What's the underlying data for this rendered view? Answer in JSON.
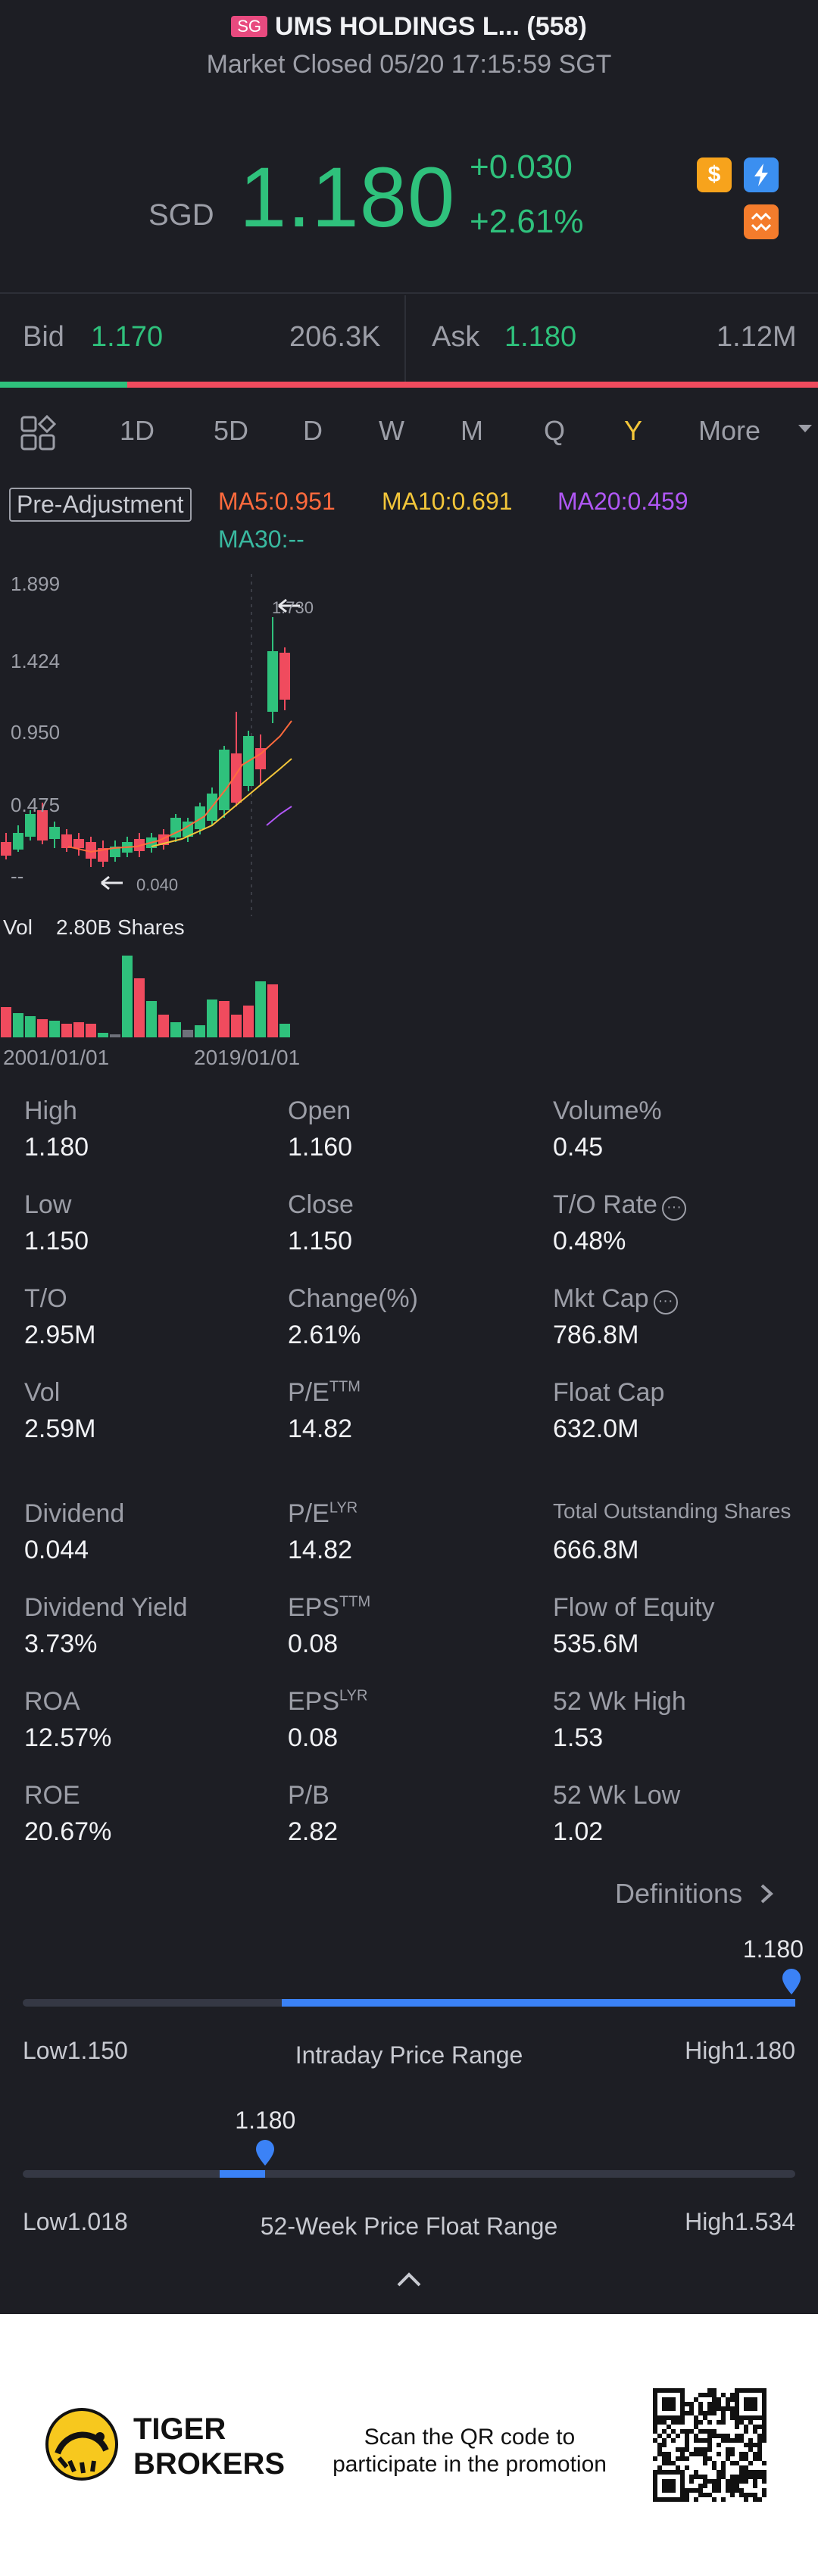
{
  "header": {
    "exchange_badge": "SG",
    "title": "UMS HOLDINGS L... (558)",
    "subtitle": "Market Closed 05/20 17:15:59 SGT"
  },
  "quote": {
    "currency": "SGD",
    "price": "1.180",
    "change": "+0.030",
    "change_pct": "+2.61%",
    "icons": [
      "dollar-icon",
      "flash-icon",
      "cross-trade-icon"
    ]
  },
  "bid_ask": {
    "bid_label": "Bid",
    "bid_price": "1.170",
    "bid_size": "206.3K",
    "ask_label": "Ask",
    "ask_price": "1.180",
    "ask_size": "1.12M",
    "bid_ratio": 0.155
  },
  "tabs": {
    "items": [
      "1D",
      "5D",
      "D",
      "W",
      "M",
      "Q",
      "Y",
      "More"
    ],
    "active": "Y"
  },
  "chart_legend": {
    "adjust": "Pre-Adjustment",
    "ma5": "MA5:0.951",
    "ma10": "MA10:0.691",
    "ma20": "MA20:0.459",
    "ma30": "MA30:--",
    "colors": {
      "ma5": "#ff6a3d",
      "ma10": "#f3c63a",
      "ma20": "#b057f5",
      "ma30": "#39b9a0"
    }
  },
  "chart_labels": {
    "y_ticks": [
      "1.899",
      "1.424",
      "0.950",
      "0.475",
      "--"
    ],
    "max_marker": "1.730",
    "min_marker": "0.040",
    "vol_label": "Vol",
    "vol_value": "2.80B Shares",
    "date_start": "2001/01/01",
    "date_mid": "2019/01/01"
  },
  "stats": [
    {
      "label": "High",
      "value": "1.180"
    },
    {
      "label": "Open",
      "value": "1.160"
    },
    {
      "label": "Volume%",
      "value": "0.45"
    },
    {
      "label": "Low",
      "value": "1.150"
    },
    {
      "label": "Close",
      "value": "1.150"
    },
    {
      "label": "T/O Rate",
      "value": "0.48%"
    },
    {
      "label": "T/O",
      "value": "2.95M"
    },
    {
      "label": "Change(%)",
      "value": "2.61%"
    },
    {
      "label": "Mkt Cap",
      "value": "786.8M"
    },
    {
      "label": "Vol",
      "value": "2.59M"
    },
    {
      "label": "P/E",
      "sup": "TTM",
      "value": "14.82"
    },
    {
      "label": "Float Cap",
      "value": "632.0M"
    },
    {
      "label": "Dividend",
      "value": "0.044"
    },
    {
      "label": "P/E",
      "sup": "LYR",
      "value": "14.82"
    },
    {
      "label": "Total Outstanding Shares",
      "value": "666.8M"
    },
    {
      "label": "Dividend Yield",
      "value": "3.73%"
    },
    {
      "label": "EPS",
      "sup": "TTM",
      "value": "0.08"
    },
    {
      "label": "Flow of Equity",
      "value": "535.6M"
    },
    {
      "label": "ROA",
      "value": "12.57%"
    },
    {
      "label": "EPS",
      "sup": "LYR",
      "value": "0.08"
    },
    {
      "label": "52 Wk High",
      "value": "1.53"
    },
    {
      "label": "ROE",
      "value": "20.67%"
    },
    {
      "label": "P/B",
      "value": "2.82"
    },
    {
      "label": "52 Wk Low",
      "value": "1.02"
    }
  ],
  "definitions_label": "Definitions",
  "intraday": {
    "marker": "1.180",
    "low": "Low1.150",
    "title": "Intraday Price Range",
    "high": "High1.180",
    "fill_start": 0.335,
    "fill_end": 1.0,
    "marker_pos": 0.995
  },
  "week52": {
    "marker": "1.180",
    "title": "52-Week Price Float Range",
    "low": "Low1.018",
    "high": "High1.534",
    "fill_start": 0.255,
    "fill_end": 0.314,
    "marker_pos": 0.314
  },
  "footer": {
    "brand_line1": "TIGER",
    "brand_line2": "BROKERS",
    "promo_line1": "Scan the QR code to",
    "promo_line2": "participate in the promotion"
  }
}
